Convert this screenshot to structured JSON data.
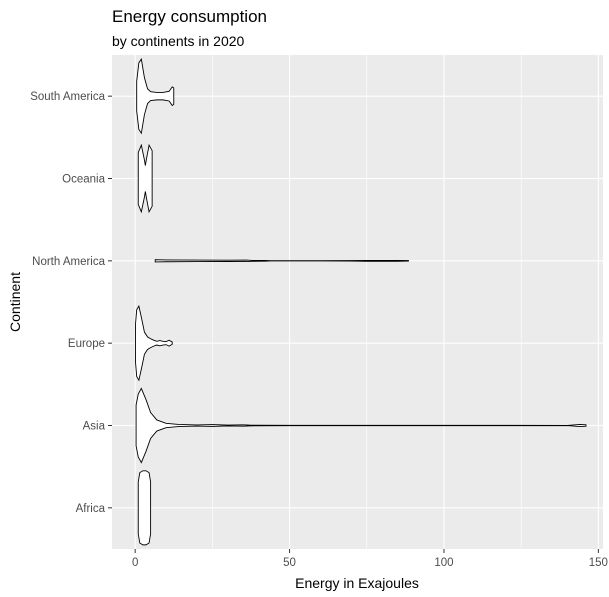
{
  "chart_data": {
    "type": "violin",
    "title": "Energy consumption",
    "subtitle": "by continents in 2020",
    "xlabel": "Energy in Exajoules",
    "ylabel": "Continent",
    "xlim": [
      -7.5,
      151.5
    ],
    "x_ticks": [
      0,
      50,
      100,
      150
    ],
    "categories": [
      "Africa",
      "Asia",
      "Europe",
      "North America",
      "Oceania",
      "South America"
    ],
    "grid": true,
    "series": [
      {
        "category": "Africa",
        "min": 1.0,
        "max": 5.0,
        "profile": [
          [
            1.0,
            0.7
          ],
          [
            1.5,
            0.95
          ],
          [
            2.5,
            1.0
          ],
          [
            3.5,
            1.0
          ],
          [
            4.5,
            0.95
          ],
          [
            5.0,
            0.7
          ]
        ]
      },
      {
        "category": "Asia",
        "min": 0.3,
        "max": 146.0,
        "profile": [
          [
            0.3,
            0.55
          ],
          [
            1.0,
            0.85
          ],
          [
            2.0,
            1.0
          ],
          [
            3.5,
            0.7
          ],
          [
            5.0,
            0.35
          ],
          [
            7.0,
            0.15
          ],
          [
            10.0,
            0.06
          ],
          [
            14.0,
            0.03
          ],
          [
            20.0,
            0.015
          ],
          [
            25.0,
            0.025
          ],
          [
            30.0,
            0.01
          ],
          [
            35.0,
            0.018
          ],
          [
            37.0,
            0.01
          ],
          [
            50.0,
            0.004
          ],
          [
            140.0,
            0.003
          ],
          [
            144.0,
            0.03
          ],
          [
            146.0,
            0.02
          ]
        ]
      },
      {
        "category": "Europe",
        "min": 0.1,
        "max": 12.0,
        "profile": [
          [
            0.1,
            0.5
          ],
          [
            0.5,
            0.9
          ],
          [
            1.2,
            1.0
          ],
          [
            2.0,
            0.7
          ],
          [
            3.0,
            0.3
          ],
          [
            4.0,
            0.17
          ],
          [
            5.0,
            0.12
          ],
          [
            6.0,
            0.08
          ],
          [
            7.0,
            0.05
          ],
          [
            8.0,
            0.07
          ],
          [
            9.0,
            0.05
          ],
          [
            10.0,
            0.04
          ],
          [
            11.0,
            0.08
          ],
          [
            12.0,
            0.03
          ]
        ]
      },
      {
        "category": "North America",
        "min": 6.5,
        "max": 88.5,
        "profile": [
          [
            6.5,
            0.03
          ],
          [
            10.0,
            0.025
          ],
          [
            20.0,
            0.02
          ],
          [
            30.0,
            0.018
          ],
          [
            36.0,
            0.02
          ],
          [
            38.0,
            0.012
          ],
          [
            42.0,
            0.01
          ],
          [
            44.0,
            0.004
          ],
          [
            60.0,
            0.003
          ],
          [
            70.0,
            0.006
          ],
          [
            75.0,
            0.012
          ],
          [
            85.0,
            0.012
          ],
          [
            88.5,
            0.006
          ]
        ]
      },
      {
        "category": "Oceania",
        "min": 1.0,
        "max": 5.5,
        "profile": [
          [
            1.0,
            0.7
          ],
          [
            2.0,
            0.9
          ],
          [
            3.0,
            0.5
          ],
          [
            3.3,
            0.35
          ],
          [
            3.6,
            0.5
          ],
          [
            4.5,
            0.9
          ],
          [
            5.5,
            0.75
          ]
        ]
      },
      {
        "category": "South America",
        "min": 0.5,
        "max": 12.5,
        "profile": [
          [
            0.5,
            0.4
          ],
          [
            1.2,
            0.9
          ],
          [
            2.0,
            1.0
          ],
          [
            3.0,
            0.5
          ],
          [
            4.0,
            0.2
          ],
          [
            5.0,
            0.12
          ],
          [
            7.0,
            0.1
          ],
          [
            9.0,
            0.1
          ],
          [
            11.0,
            0.13
          ],
          [
            12.0,
            0.25
          ],
          [
            12.5,
            0.22
          ]
        ]
      }
    ]
  }
}
